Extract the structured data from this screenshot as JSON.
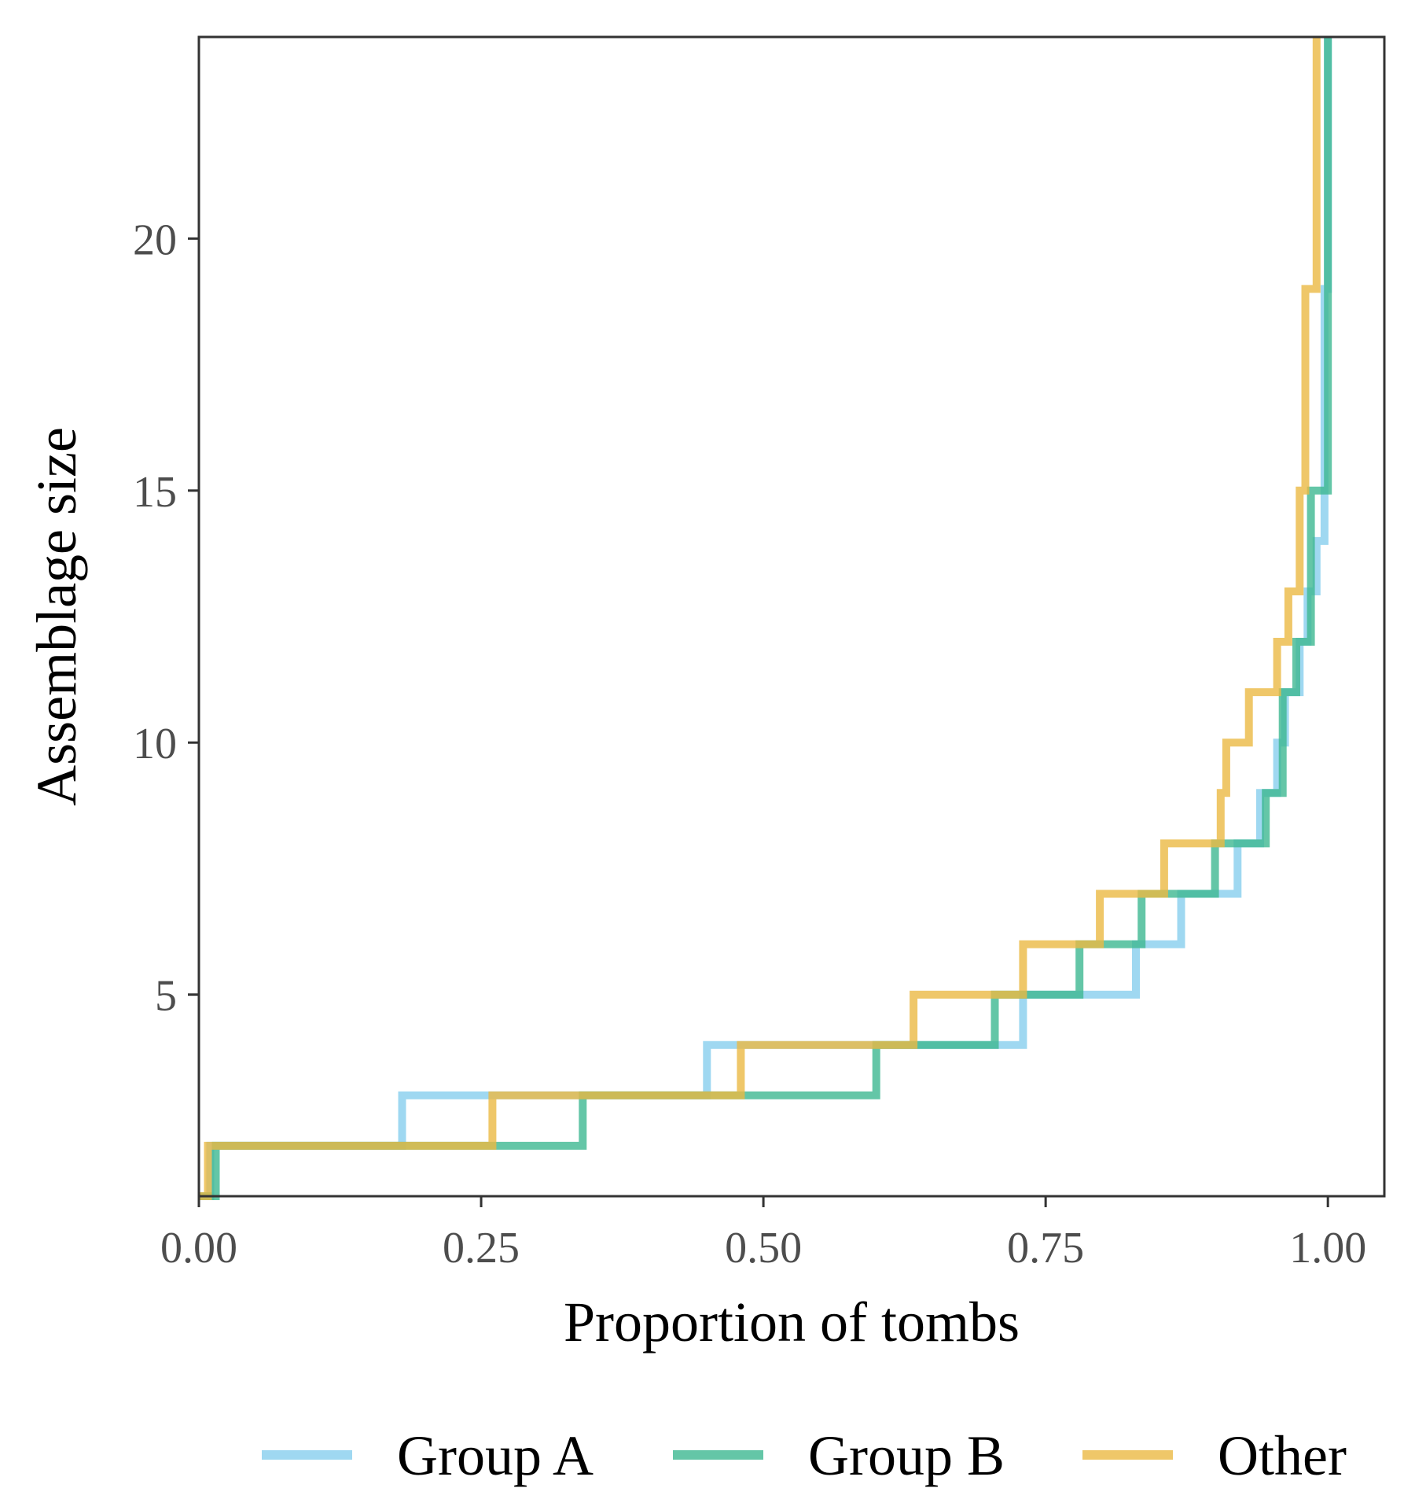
{
  "chart_data": {
    "type": "line",
    "step": true,
    "xlabel": "Proportion of tombs",
    "ylabel": "Assemblage size",
    "xlim": [
      0,
      1.05
    ],
    "ylim": [
      1,
      24
    ],
    "x_ticks": [
      0,
      0.25,
      0.5,
      0.75,
      1
    ],
    "x_tick_labels": [
      "0.00",
      "0.25",
      "0.50",
      "0.75",
      "1.00"
    ],
    "y_ticks": [
      5,
      10,
      15,
      20
    ],
    "y_tick_labels": [
      "5",
      "10",
      "15",
      "20"
    ],
    "grid": false,
    "legend_position": "bottom",
    "series": [
      {
        "name": "Group A",
        "color": "#87CEEE",
        "points": [
          [
            0,
            1
          ],
          [
            0.01,
            1
          ],
          [
            0.01,
            2
          ],
          [
            0.18,
            2
          ],
          [
            0.18,
            3
          ],
          [
            0.45,
            3
          ],
          [
            0.45,
            4
          ],
          [
            0.73,
            4
          ],
          [
            0.73,
            5
          ],
          [
            0.83,
            5
          ],
          [
            0.83,
            6
          ],
          [
            0.87,
            6
          ],
          [
            0.87,
            7
          ],
          [
            0.92,
            7
          ],
          [
            0.92,
            8
          ],
          [
            0.94,
            8
          ],
          [
            0.94,
            9
          ],
          [
            0.955,
            9
          ],
          [
            0.955,
            10
          ],
          [
            0.962,
            10
          ],
          [
            0.962,
            11
          ],
          [
            0.975,
            11
          ],
          [
            0.975,
            12
          ],
          [
            0.982,
            12
          ],
          [
            0.982,
            13
          ],
          [
            0.99,
            13
          ],
          [
            0.99,
            14
          ],
          [
            0.997,
            14
          ],
          [
            0.997,
            19
          ],
          [
            1,
            19
          ],
          [
            1,
            24
          ]
        ]
      },
      {
        "name": "Group B",
        "color": "#3DB891",
        "points": [
          [
            0,
            1
          ],
          [
            0.015,
            1
          ],
          [
            0.015,
            2
          ],
          [
            0.34,
            2
          ],
          [
            0.34,
            3
          ],
          [
            0.6,
            3
          ],
          [
            0.6,
            4
          ],
          [
            0.705,
            4
          ],
          [
            0.705,
            5
          ],
          [
            0.78,
            5
          ],
          [
            0.78,
            6
          ],
          [
            0.835,
            6
          ],
          [
            0.835,
            7
          ],
          [
            0.9,
            7
          ],
          [
            0.9,
            8
          ],
          [
            0.945,
            8
          ],
          [
            0.945,
            9
          ],
          [
            0.96,
            9
          ],
          [
            0.96,
            11
          ],
          [
            0.972,
            11
          ],
          [
            0.972,
            12
          ],
          [
            0.985,
            12
          ],
          [
            0.985,
            15
          ],
          [
            1,
            15
          ],
          [
            1,
            24
          ]
        ]
      },
      {
        "name": "Other",
        "color": "#EBB943",
        "points": [
          [
            0,
            1
          ],
          [
            0.008,
            1
          ],
          [
            0.008,
            2
          ],
          [
            0.26,
            2
          ],
          [
            0.26,
            3
          ],
          [
            0.48,
            3
          ],
          [
            0.48,
            4
          ],
          [
            0.633,
            4
          ],
          [
            0.633,
            5
          ],
          [
            0.73,
            5
          ],
          [
            0.73,
            6
          ],
          [
            0.798,
            6
          ],
          [
            0.798,
            7
          ],
          [
            0.855,
            7
          ],
          [
            0.855,
            8
          ],
          [
            0.905,
            8
          ],
          [
            0.905,
            9
          ],
          [
            0.91,
            9
          ],
          [
            0.91,
            10
          ],
          [
            0.93,
            10
          ],
          [
            0.93,
            11
          ],
          [
            0.955,
            11
          ],
          [
            0.955,
            12
          ],
          [
            0.965,
            12
          ],
          [
            0.965,
            13
          ],
          [
            0.975,
            13
          ],
          [
            0.975,
            15
          ],
          [
            0.98,
            15
          ],
          [
            0.98,
            19
          ],
          [
            0.99,
            19
          ],
          [
            0.99,
            24
          ]
        ]
      }
    ]
  }
}
